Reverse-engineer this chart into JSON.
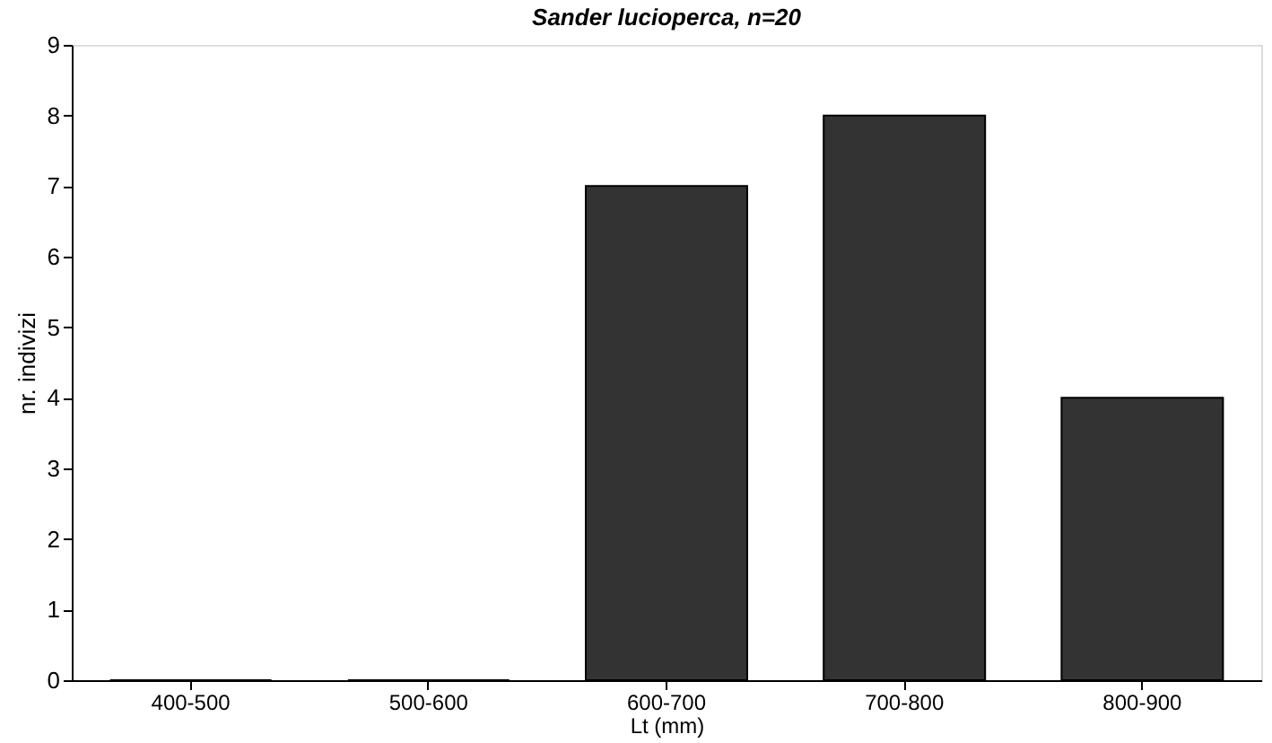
{
  "chart_data": {
    "type": "bar",
    "title": "Sander lucioperca, n=20",
    "xlabel": "Lt (mm)",
    "ylabel": "nr. indivizi",
    "categories": [
      "400-500",
      "500-600",
      "600-700",
      "700-800",
      "800-900"
    ],
    "values": [
      0,
      0,
      7,
      8,
      4
    ],
    "color": "#333333",
    "ylim": [
      0,
      9
    ],
    "yticks": [
      0,
      1,
      2,
      3,
      4,
      5,
      6,
      7,
      8,
      9
    ],
    "grid": false
  }
}
